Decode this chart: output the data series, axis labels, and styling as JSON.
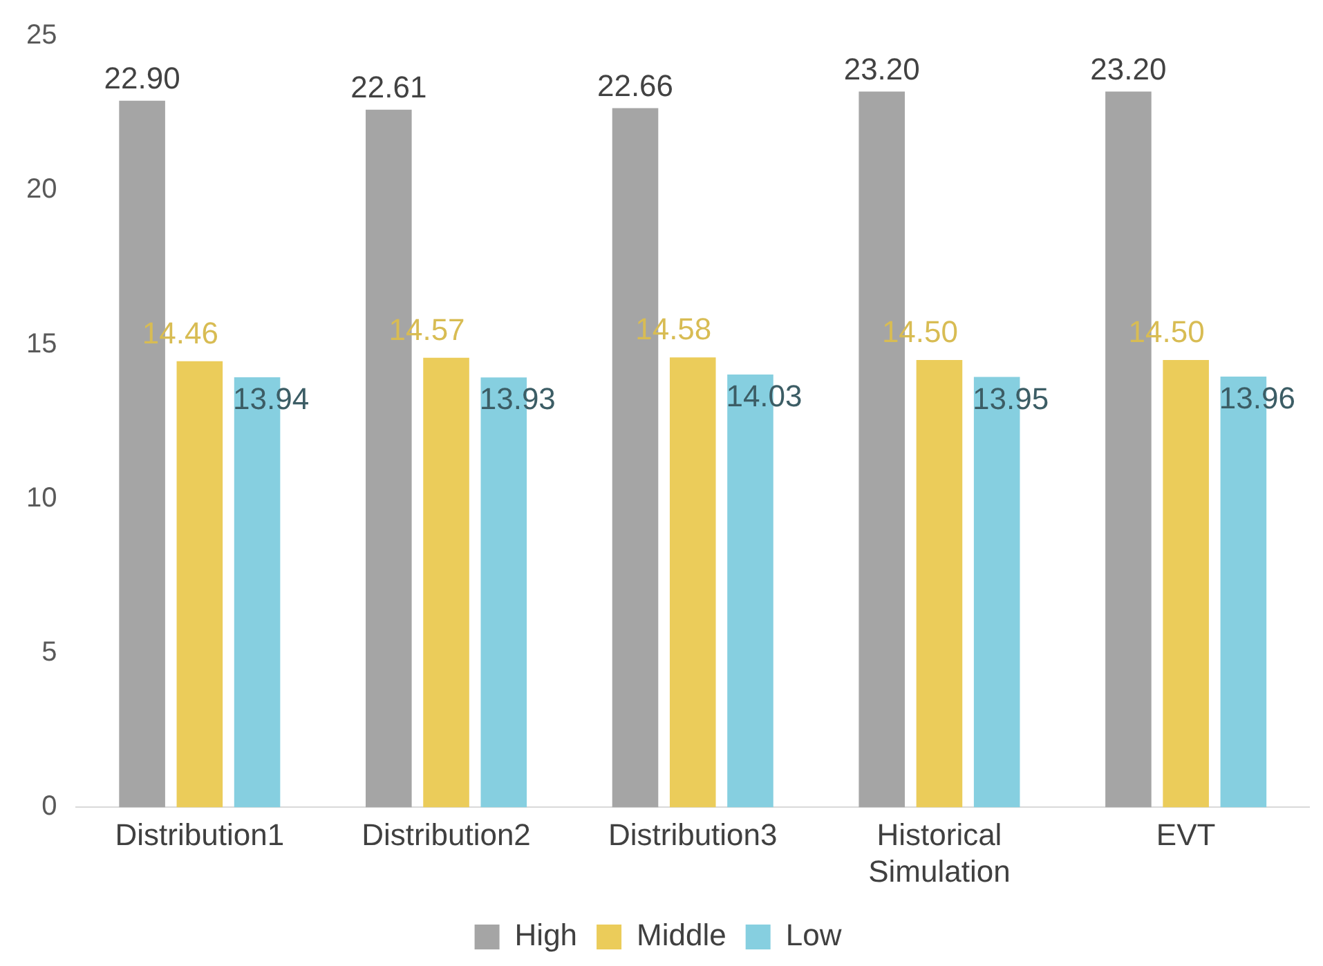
{
  "chart_data": {
    "type": "bar",
    "categories": [
      "Distribution1",
      "Distribution2",
      "Distribution3",
      "Historical Simulation",
      "EVT"
    ],
    "series": [
      {
        "name": "High",
        "color": "#a5a5a5",
        "values": [
          22.9,
          22.61,
          22.66,
          23.2,
          23.2
        ],
        "value_labels": [
          "22.90",
          "22.61",
          "22.66",
          "23.20",
          "23.20"
        ]
      },
      {
        "name": "Middle",
        "color": "#ebcc5a",
        "values": [
          14.46,
          14.57,
          14.58,
          14.5,
          14.5
        ],
        "value_labels": [
          "14.46",
          "14.57",
          "14.58",
          "14.50",
          "14.50"
        ]
      },
      {
        "name": "Low",
        "color": "#86cfe0",
        "values": [
          13.94,
          13.93,
          14.03,
          13.95,
          13.96
        ],
        "value_labels": [
          "13.94",
          "13.93",
          "14.03",
          "13.95",
          "13.96"
        ]
      }
    ],
    "ylim": [
      0,
      25
    ],
    "yticks": [
      0,
      5,
      10,
      15,
      20,
      25
    ],
    "grid": false,
    "legend": "bottom"
  }
}
